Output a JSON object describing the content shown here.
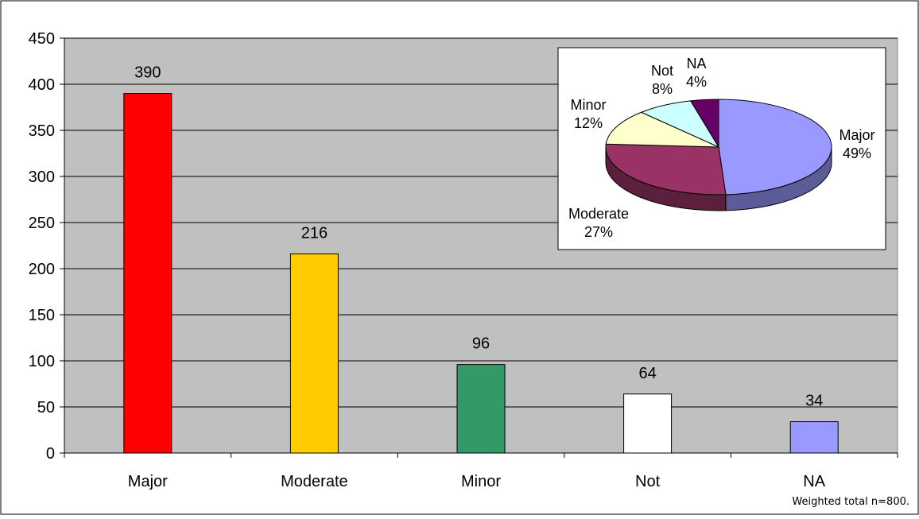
{
  "chart_data": [
    {
      "type": "bar",
      "categories": [
        "Major",
        "Moderate",
        "Minor",
        "Not",
        "NA"
      ],
      "values": [
        390,
        216,
        96,
        64,
        34
      ],
      "data_labels": [
        "390",
        "216",
        "96",
        "64",
        "34"
      ],
      "colors": [
        "#FF0000",
        "#FFCC00",
        "#339966",
        "#FFFFFF",
        "#9999FF"
      ],
      "plot_background": "#C0C0C0",
      "ylim": [
        0,
        450
      ],
      "yticks": [
        0,
        50,
        100,
        150,
        200,
        250,
        300,
        350,
        400,
        450
      ],
      "grid": true,
      "legend": "none"
    },
    {
      "type": "pie",
      "style": "3d",
      "categories": [
        "Major",
        "Moderate",
        "Minor",
        "Not",
        "NA"
      ],
      "values": [
        49,
        27,
        12,
        8,
        4
      ],
      "labels": [
        "49%",
        "27%",
        "12%",
        "8%",
        "4%"
      ],
      "colors": [
        "#9999FF",
        "#993366",
        "#FFFFCC",
        "#CCFFFF",
        "#660066"
      ],
      "placement": "inset top-right"
    }
  ],
  "footnote": "Weighted total n=800."
}
